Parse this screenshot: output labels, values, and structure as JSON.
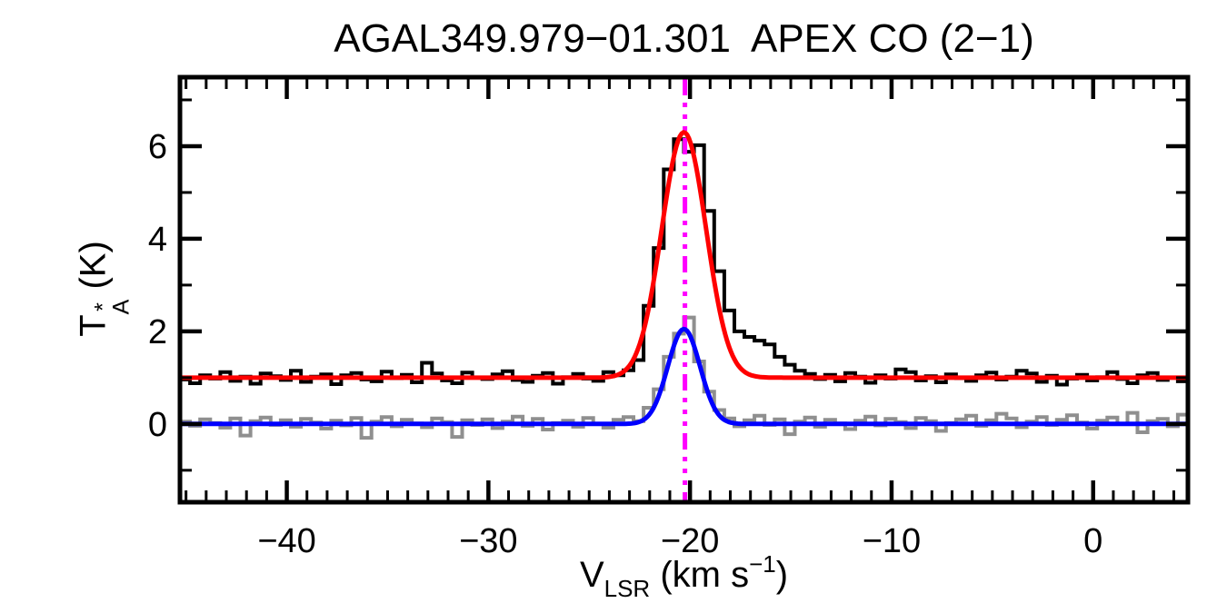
{
  "chart_data": {
    "type": "line",
    "title": "AGAL349.979−01.301  APEX CO (2−1)",
    "xlabel": {
      "symbol": "V",
      "sub": "LSR",
      "unit_open": " (km s",
      "exp": "−1",
      "unit_close": ")"
    },
    "ylabel": {
      "symbol": "T",
      "sup": "*",
      "sub": "A",
      "unit": " (K)"
    },
    "xlim": [
      -45.3,
      4.7
    ],
    "ylim": [
      -1.69,
      7.49
    ],
    "x_axis": {
      "major_ticks": [
        -40,
        -30,
        -20,
        -10,
        0
      ],
      "major_labels": [
        "−40",
        "−30",
        "−20",
        "−10",
        "0"
      ],
      "minor_step": 1
    },
    "y_axis": {
      "major_ticks": [
        0,
        2,
        4,
        6
      ],
      "major_labels": [
        "0",
        "2",
        "4",
        "6"
      ],
      "minor_step": 1
    },
    "vline": {
      "x": -20.25,
      "color": "#FF00FF",
      "style": "dash-dot-dot-dot"
    },
    "histograms": [
      {
        "name": "spectrum_gray",
        "color": "#8F8F8F",
        "x_start": -45.05,
        "dx": 0.5,
        "values": [
          0.05,
          -0.04,
          0.1,
          0.02,
          -0.08,
          0.12,
          -0.25,
          0.06,
          0.14,
          -0.02,
          0.08,
          -0.06,
          0.11,
          0.03,
          -0.1,
          0.07,
          -0.03,
          0.13,
          -0.3,
          0.05,
          0.15,
          -0.05,
          0.09,
          0.01,
          -0.07,
          0.12,
          0.04,
          -0.28,
          0.08,
          -0.02,
          0.1,
          -0.09,
          0.05,
          0.16,
          -0.04,
          0.11,
          -0.12,
          0.02,
          0.07,
          -0.06,
          0.13,
          0.0,
          -0.08,
          0.09,
          0.15,
          0.06,
          0.35,
          0.75,
          1.45,
          1.95,
          2.3,
          1.35,
          0.7,
          0.3,
          0.12,
          -0.05,
          0.08,
          0.18,
          -0.02,
          0.1,
          -0.22,
          0.05,
          0.14,
          -0.06,
          0.09,
          0.01,
          -0.11,
          0.07,
          0.16,
          -0.03,
          0.11,
          0.04,
          -0.09,
          0.13,
          0.06,
          -0.15,
          0.02,
          0.1,
          0.18,
          -0.04,
          0.08,
          0.22,
          0.12,
          -0.07,
          0.05,
          0.15,
          -0.02,
          0.09,
          0.19,
          0.03,
          -0.1,
          0.07,
          0.14,
          0.0,
          0.24,
          -0.18,
          0.06,
          0.11,
          -0.05,
          0.2
        ]
      },
      {
        "name": "spectrum_black",
        "color": "#000000",
        "x_start": -45.05,
        "dx": 0.5,
        "values": [
          0.96,
          0.88,
          1.05,
          0.98,
          1.12,
          0.93,
          1.02,
          0.87,
          1.09,
          1.03,
          0.95,
          1.15,
          0.91,
          1.02,
          1.07,
          0.86,
          1.05,
          1.1,
          0.96,
          0.92,
          1.13,
          0.99,
          1.06,
          0.9,
          1.32,
          1.09,
          0.94,
          0.88,
          1.11,
          1.0,
          0.97,
          1.07,
          1.14,
          0.95,
          0.91,
          1.04,
          1.1,
          0.87,
          1.01,
          1.08,
          0.98,
          0.93,
          1.12,
          1.05,
          1.16,
          1.38,
          2.55,
          3.8,
          5.5,
          6.15,
          5.88,
          6.02,
          4.6,
          3.3,
          2.45,
          2.0,
          1.88,
          1.8,
          1.72,
          1.45,
          1.28,
          1.15,
          1.08,
          0.97,
          1.06,
          0.92,
          1.1,
          1.02,
          0.89,
          1.05,
          0.98,
          1.18,
          1.12,
          0.94,
          1.03,
          0.9,
          1.07,
          0.99,
          0.93,
          1.05,
          1.11,
          0.96,
          1.02,
          1.15,
          1.09,
          0.91,
          1.04,
          0.85,
          0.98,
          1.06,
          0.94,
          1.01,
          1.12,
          0.97,
          0.88,
          1.05,
          1.1,
          0.95,
          1.0,
          0.92
        ]
      }
    ],
    "fits": [
      {
        "name": "gaussian_fit_blue",
        "color": "#0000FF",
        "baseline": 0.0,
        "amplitude": 2.05,
        "center": -20.3,
        "sigma": 0.8
      },
      {
        "name": "gaussian_fit_red",
        "color": "#FF0000",
        "baseline": 1.0,
        "amplitude": 5.3,
        "center": -20.3,
        "sigma": 1.1
      }
    ]
  }
}
